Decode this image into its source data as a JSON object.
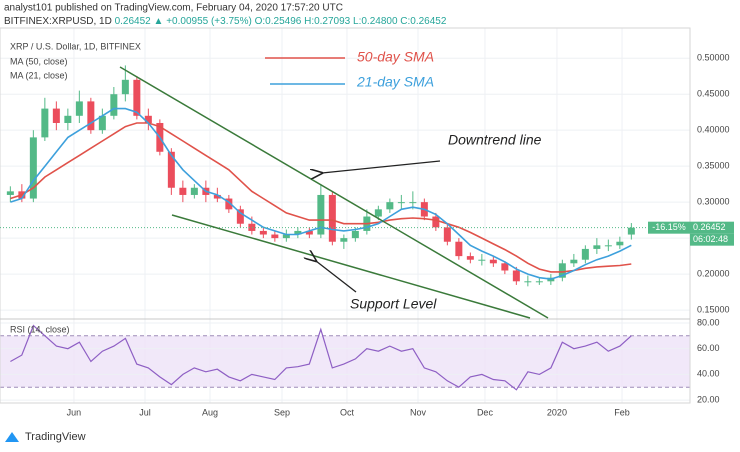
{
  "chart_data": {
    "type": "candlestick",
    "header": {
      "published": "analyst101 published on TradingView.com, February 04, 2020 17:57:20 UTC",
      "symbol": "BITFINEX:XRPUSD, 1D",
      "price": "0.26452",
      "change": "▲ +0.00955 (+3.75%)",
      "ohlc": "O:0.25496 H:0.27093 L:0.24800 C:0.26452"
    },
    "title": "XRP / U.S. Dollar, 1D, BITFINEX",
    "indicator_labels": [
      "MA (50, close)",
      "MA (21, close)"
    ],
    "annotations": [
      "50-day SMA",
      "21-day SMA",
      "Downtrend line",
      "Support Level"
    ],
    "up_color": "#53b987",
    "down_color": "#eb4d5c",
    "open": [
      0.31,
      0.315,
      0.305,
      0.39,
      0.43,
      0.41,
      0.42,
      0.44,
      0.4,
      0.42,
      0.45,
      0.47,
      0.42,
      0.41,
      0.37,
      0.32,
      0.31,
      0.32,
      0.31,
      0.305,
      0.29,
      0.27,
      0.26,
      0.255,
      0.25,
      0.255,
      0.26,
      0.255,
      0.31,
      0.245,
      0.25,
      0.26,
      0.28,
      0.29,
      0.3,
      0.3,
      0.3,
      0.28,
      0.265,
      0.245,
      0.225,
      0.22,
      0.22,
      0.215,
      0.205,
      0.19,
      0.19,
      0.19,
      0.195,
      0.215,
      0.22,
      0.235,
      0.24,
      0.24,
      0.25496
    ],
    "high": [
      0.322,
      0.325,
      0.4,
      0.445,
      0.44,
      0.43,
      0.455,
      0.445,
      0.43,
      0.46,
      0.49,
      0.475,
      0.43,
      0.415,
      0.375,
      0.33,
      0.325,
      0.33,
      0.32,
      0.31,
      0.295,
      0.28,
      0.265,
      0.26,
      0.262,
      0.265,
      0.265,
      0.325,
      0.315,
      0.255,
      0.265,
      0.29,
      0.295,
      0.305,
      0.31,
      0.315,
      0.305,
      0.285,
      0.27,
      0.25,
      0.23,
      0.228,
      0.225,
      0.218,
      0.21,
      0.198,
      0.195,
      0.2,
      0.22,
      0.228,
      0.24,
      0.25,
      0.248,
      0.252,
      0.27093
    ],
    "low": [
      0.3,
      0.3,
      0.3,
      0.385,
      0.4,
      0.4,
      0.41,
      0.395,
      0.395,
      0.415,
      0.44,
      0.415,
      0.4,
      0.365,
      0.31,
      0.3,
      0.305,
      0.3,
      0.3,
      0.285,
      0.265,
      0.255,
      0.25,
      0.245,
      0.245,
      0.25,
      0.25,
      0.25,
      0.24,
      0.235,
      0.245,
      0.255,
      0.275,
      0.285,
      0.29,
      0.29,
      0.275,
      0.26,
      0.24,
      0.22,
      0.215,
      0.212,
      0.21,
      0.2,
      0.185,
      0.183,
      0.185,
      0.185,
      0.19,
      0.21,
      0.215,
      0.228,
      0.232,
      0.235,
      0.248
    ],
    "close": [
      0.315,
      0.305,
      0.39,
      0.43,
      0.41,
      0.42,
      0.44,
      0.4,
      0.42,
      0.45,
      0.47,
      0.42,
      0.41,
      0.37,
      0.32,
      0.31,
      0.32,
      0.31,
      0.305,
      0.29,
      0.27,
      0.26,
      0.255,
      0.25,
      0.255,
      0.26,
      0.255,
      0.31,
      0.245,
      0.25,
      0.26,
      0.28,
      0.29,
      0.3,
      0.3,
      0.3,
      0.28,
      0.265,
      0.245,
      0.225,
      0.22,
      0.22,
      0.215,
      0.205,
      0.19,
      0.19,
      0.19,
      0.195,
      0.215,
      0.22,
      0.235,
      0.24,
      0.24,
      0.245,
      0.26452
    ],
    "series": [
      {
        "name": "50-day SMA",
        "color": "#e0524a",
        "values": [
          0.305,
          0.31,
          0.32,
          0.335,
          0.345,
          0.355,
          0.365,
          0.375,
          0.385,
          0.395,
          0.405,
          0.41,
          0.41,
          0.405,
          0.395,
          0.385,
          0.375,
          0.365,
          0.355,
          0.345,
          0.33,
          0.315,
          0.305,
          0.295,
          0.285,
          0.28,
          0.275,
          0.275,
          0.275,
          0.27,
          0.27,
          0.27,
          0.272,
          0.275,
          0.277,
          0.278,
          0.277,
          0.275,
          0.27,
          0.265,
          0.258,
          0.25,
          0.242,
          0.234,
          0.225,
          0.215,
          0.207,
          0.203,
          0.203,
          0.205,
          0.208,
          0.21,
          0.211,
          0.212,
          0.214
        ]
      },
      {
        "name": "21-day SMA",
        "color": "#3da0dc",
        "values": [
          0.3,
          0.305,
          0.33,
          0.35,
          0.37,
          0.39,
          0.4,
          0.41,
          0.42,
          0.43,
          0.43,
          0.425,
          0.41,
          0.39,
          0.365,
          0.345,
          0.33,
          0.315,
          0.31,
          0.3,
          0.285,
          0.275,
          0.265,
          0.26,
          0.255,
          0.255,
          0.26,
          0.265,
          0.262,
          0.26,
          0.262,
          0.265,
          0.27,
          0.28,
          0.29,
          0.293,
          0.29,
          0.283,
          0.27,
          0.255,
          0.24,
          0.232,
          0.225,
          0.217,
          0.207,
          0.2,
          0.195,
          0.193,
          0.198,
          0.205,
          0.213,
          0.22,
          0.225,
          0.232,
          0.24
        ]
      }
    ],
    "xlim": [
      -0.9,
      59.1
    ],
    "xticks": [
      {
        "value": 5.53,
        "label": "Jun"
      },
      {
        "value": 11.71,
        "label": "Jul"
      },
      {
        "value": 17.36,
        "label": "Aug"
      },
      {
        "value": 23.62,
        "label": "Sep"
      },
      {
        "value": 29.27,
        "label": "Oct"
      },
      {
        "value": 35.45,
        "label": "Nov"
      },
      {
        "value": 41.27,
        "label": "Dec"
      },
      {
        "value": 47.53,
        "label": "2020"
      },
      {
        "value": 53.19,
        "label": "Feb"
      }
    ],
    "ylim": [
      0.139,
      0.542
    ],
    "yticks": [
      {
        "value": 0.15,
        "label": "0.15000"
      },
      {
        "value": 0.2,
        "label": "0.20000"
      },
      {
        "value": 0.25,
        "label": "0.25000"
      },
      {
        "value": 0.3,
        "label": "0.30000"
      },
      {
        "value": 0.35,
        "label": "0.35000"
      },
      {
        "value": 0.4,
        "label": "0.40000"
      },
      {
        "value": 0.45,
        "label": "0.45000"
      },
      {
        "value": 0.5,
        "label": "0.50000"
      }
    ],
    "price_tag": {
      "change": "-16.15%",
      "price": "0.26452",
      "countdown": "06:02:48"
    },
    "rsi": {
      "label": "RSI (14, close)",
      "color": "#8e5fc4",
      "values": [
        50,
        55,
        78,
        70,
        62,
        60,
        65,
        50,
        58,
        62,
        68,
        48,
        45,
        38,
        32,
        40,
        45,
        42,
        44,
        38,
        35,
        40,
        38,
        36,
        45,
        46,
        48,
        75,
        45,
        48,
        52,
        60,
        58,
        62,
        58,
        60,
        45,
        42,
        35,
        30,
        38,
        40,
        36,
        35,
        28,
        42,
        40,
        45,
        65,
        60,
        62,
        65,
        58,
        62,
        70
      ],
      "band": [
        30,
        70
      ],
      "ylim": [
        18.5,
        82.3
      ],
      "yticks": [
        {
          "value": 20,
          "label": "20.00"
        },
        {
          "value": 40,
          "label": "40.00"
        },
        {
          "value": 60,
          "label": "60.00"
        },
        {
          "value": 80,
          "label": "80.00"
        }
      ]
    },
    "brand": "TradingView"
  }
}
